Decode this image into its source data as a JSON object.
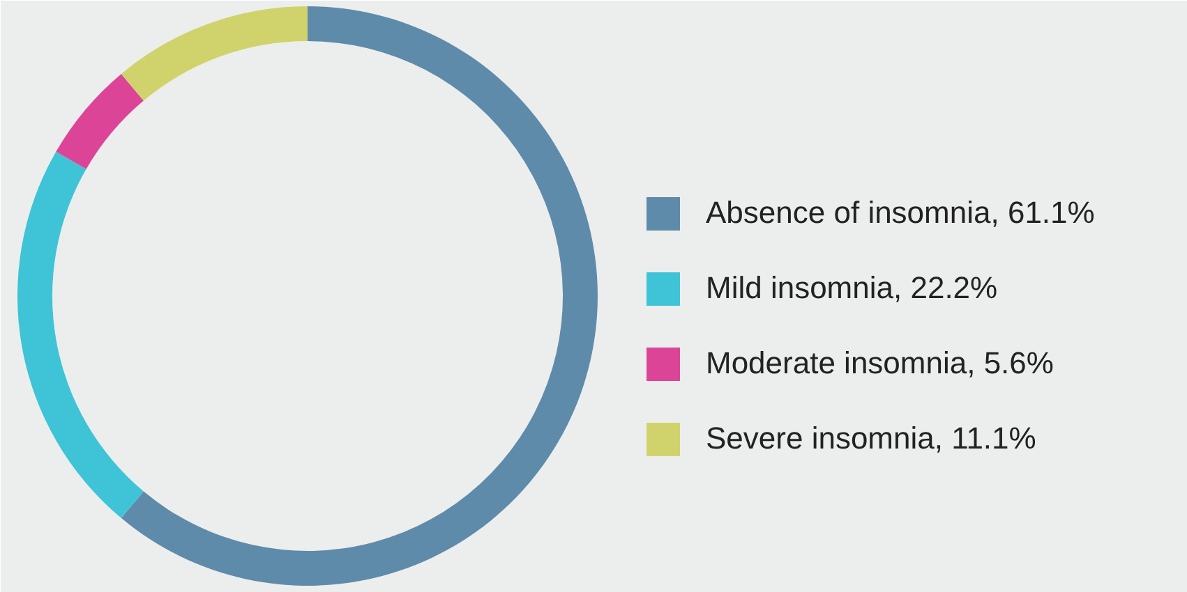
{
  "chart_data": {
    "type": "donut",
    "categories": [
      "Absence of insomnia, 61.1%",
      "Mild insomnia, 22.2%",
      "Moderate insomnia, 5.6%",
      "Severe insomnia, 11.1%"
    ],
    "values": [
      61.1,
      22.2,
      5.6,
      11.1
    ],
    "colors": [
      "#5f8bab",
      "#3ec4d6",
      "#dc4597",
      "#d0d36c"
    ],
    "legend": "right"
  }
}
